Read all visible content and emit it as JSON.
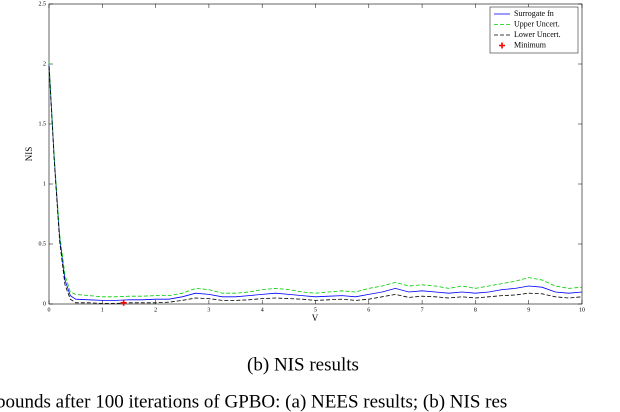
{
  "chart_data": {
    "type": "line",
    "x": [
      0,
      0.1,
      0.2,
      0.3,
      0.4,
      0.5,
      0.75,
      1,
      1.25,
      1.5,
      1.75,
      2,
      2.25,
      2.5,
      2.75,
      3,
      3.25,
      3.5,
      3.75,
      4,
      4.25,
      4.5,
      4.75,
      5,
      5.25,
      5.5,
      5.75,
      6,
      6.25,
      6.5,
      6.75,
      7,
      7.25,
      7.5,
      7.75,
      8,
      8.25,
      8.5,
      8.75,
      9,
      9.25,
      9.5,
      9.75,
      10
    ],
    "series": [
      {
        "name": "Surrogate fn",
        "color": "#0000ff",
        "dash": "none",
        "values": [
          2.0,
          1.2,
          0.55,
          0.2,
          0.07,
          0.04,
          0.035,
          0.03,
          0.03,
          0.035,
          0.035,
          0.04,
          0.04,
          0.06,
          0.09,
          0.08,
          0.06,
          0.06,
          0.07,
          0.08,
          0.09,
          0.08,
          0.07,
          0.06,
          0.065,
          0.07,
          0.06,
          0.08,
          0.1,
          0.13,
          0.1,
          0.11,
          0.1,
          0.09,
          0.1,
          0.09,
          0.1,
          0.12,
          0.13,
          0.15,
          0.14,
          0.1,
          0.09,
          0.1
        ]
      },
      {
        "name": "Upper Uncert.",
        "color": "#00cc00",
        "dash": "4 2",
        "values": [
          2.02,
          1.22,
          0.58,
          0.24,
          0.1,
          0.08,
          0.07,
          0.06,
          0.06,
          0.065,
          0.065,
          0.07,
          0.07,
          0.09,
          0.13,
          0.12,
          0.09,
          0.09,
          0.1,
          0.12,
          0.13,
          0.12,
          0.1,
          0.09,
          0.1,
          0.11,
          0.1,
          0.13,
          0.15,
          0.18,
          0.15,
          0.16,
          0.15,
          0.13,
          0.15,
          0.13,
          0.15,
          0.17,
          0.19,
          0.22,
          0.2,
          0.15,
          0.13,
          0.14
        ]
      },
      {
        "name": "Lower Uncert.",
        "color": "#000000",
        "dash": "4 2",
        "values": [
          1.98,
          1.18,
          0.52,
          0.16,
          0.04,
          0.01,
          0.01,
          0.005,
          0.005,
          0.01,
          0.01,
          0.01,
          0.015,
          0.03,
          0.05,
          0.045,
          0.03,
          0.03,
          0.035,
          0.045,
          0.05,
          0.045,
          0.04,
          0.03,
          0.035,
          0.04,
          0.03,
          0.04,
          0.06,
          0.08,
          0.055,
          0.065,
          0.06,
          0.05,
          0.06,
          0.05,
          0.06,
          0.07,
          0.075,
          0.09,
          0.085,
          0.06,
          0.05,
          0.06
        ]
      },
      {
        "name": "Minimum",
        "color": "#ff0000",
        "type": "scatter",
        "marker": "plus",
        "x": [
          1.4
        ],
        "values": [
          0.01
        ]
      }
    ],
    "xlabel": "V",
    "ylabel": "NIS",
    "xlim": [
      0,
      10
    ],
    "xticks": [
      0,
      1,
      2,
      3,
      4,
      5,
      6,
      7,
      8,
      9,
      10
    ],
    "ylim": [
      0,
      2.5
    ],
    "yticks": [
      0,
      0.5,
      1,
      1.5,
      2,
      2.5
    ],
    "legend": "upper right",
    "grid": false
  },
  "caption": "(b) NIS results",
  "figure_caption": "bounds after 100 iterations of GPBO: (a) NEES results; (b) NIS res"
}
